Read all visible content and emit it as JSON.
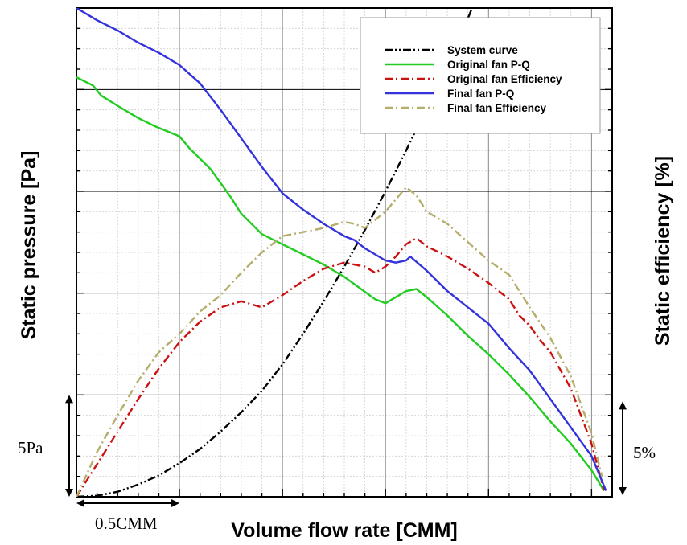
{
  "chart_data": {
    "type": "line",
    "xlabel": "Volume flow rate [CMM]",
    "ylabel_left": "Static pressure [Pa]",
    "ylabel_right": "Static efficiency [%]",
    "xlim": [
      0,
      2.6
    ],
    "ylim_pressure": [
      0,
      24
    ],
    "ylim_efficiency": [
      0,
      24
    ],
    "grid": true,
    "legend_position": "top-right",
    "scale_markers": {
      "x": "0.5CMM",
      "y_left": "5Pa",
      "y_right": "5%"
    },
    "series": [
      {
        "name": "System curve",
        "color": "#000000",
        "dash": "dash-dot-dot",
        "x": [
          0,
          0.1,
          0.2,
          0.3,
          0.4,
          0.5,
          0.6,
          0.7,
          0.8,
          0.9,
          1.0,
          1.1,
          1.2,
          1.3,
          1.4,
          1.5,
          1.6,
          1.7,
          1.8,
          1.9,
          1.96
        ],
        "y": [
          0,
          0.05,
          0.25,
          0.6,
          1.05,
          1.65,
          2.35,
          3.2,
          4.15,
          5.2,
          6.5,
          8.0,
          9.6,
          11.3,
          13.1,
          15.0,
          17.0,
          19.1,
          21.3,
          23.5,
          25.0
        ]
      },
      {
        "name": "Original fan P-Q",
        "color": "#22cc22",
        "dash": "solid",
        "x": [
          0,
          0.08,
          0.12,
          0.2,
          0.3,
          0.38,
          0.5,
          0.55,
          0.65,
          0.75,
          0.8,
          0.9,
          1.0,
          1.1,
          1.2,
          1.3,
          1.45,
          1.5,
          1.6,
          1.65,
          1.7,
          1.8,
          1.9,
          2.0,
          2.1,
          2.2,
          2.3,
          2.4,
          2.5,
          2.56
        ],
        "y": [
          20.6,
          20.2,
          19.7,
          19.2,
          18.6,
          18.2,
          17.7,
          17.1,
          16.1,
          14.7,
          13.9,
          12.9,
          12.4,
          11.9,
          11.4,
          10.8,
          9.7,
          9.5,
          10.1,
          10.2,
          9.8,
          8.9,
          7.9,
          7.0,
          6.0,
          4.9,
          3.7,
          2.6,
          1.3,
          0.3
        ]
      },
      {
        "name": "Original fan Efficiency",
        "color": "#cc1111",
        "dash": "dash-dot",
        "x": [
          0,
          0.1,
          0.2,
          0.3,
          0.4,
          0.5,
          0.6,
          0.7,
          0.8,
          0.9,
          1.0,
          1.1,
          1.2,
          1.3,
          1.4,
          1.45,
          1.5,
          1.55,
          1.6,
          1.65,
          1.7,
          1.8,
          1.9,
          2.0,
          2.1,
          2.15,
          2.2,
          2.25,
          2.3,
          2.4,
          2.5,
          2.56
        ],
        "y": [
          0,
          1.6,
          3.2,
          4.8,
          6.3,
          7.6,
          8.6,
          9.3,
          9.6,
          9.3,
          9.9,
          10.6,
          11.2,
          11.5,
          11.3,
          11.0,
          11.3,
          11.8,
          12.4,
          12.7,
          12.3,
          11.8,
          11.2,
          10.5,
          9.7,
          8.9,
          8.4,
          7.7,
          7.1,
          5.3,
          2.6,
          0.3
        ]
      },
      {
        "name": "Final fan P-Q",
        "color": "#3333dd",
        "dash": "solid",
        "x": [
          0,
          0.1,
          0.2,
          0.3,
          0.4,
          0.5,
          0.6,
          0.7,
          0.8,
          0.9,
          1.0,
          1.1,
          1.2,
          1.3,
          1.35,
          1.4,
          1.5,
          1.55,
          1.6,
          1.62,
          1.7,
          1.8,
          1.9,
          2.0,
          2.1,
          2.2,
          2.3,
          2.4,
          2.5,
          2.57
        ],
        "y": [
          24.0,
          23.4,
          22.9,
          22.3,
          21.8,
          21.2,
          20.3,
          19.0,
          17.6,
          16.2,
          14.9,
          14.1,
          13.4,
          12.8,
          12.6,
          12.2,
          11.6,
          11.5,
          11.6,
          11.8,
          11.1,
          10.1,
          9.3,
          8.5,
          7.3,
          6.2,
          4.8,
          3.4,
          2.0,
          0.3
        ]
      },
      {
        "name": "Final fan Efficiency",
        "color": "#b5ad6a",
        "dash": "dash-dot",
        "x": [
          0,
          0.1,
          0.2,
          0.3,
          0.4,
          0.5,
          0.6,
          0.7,
          0.8,
          0.9,
          1.0,
          1.1,
          1.2,
          1.3,
          1.35,
          1.4,
          1.45,
          1.5,
          1.55,
          1.6,
          1.65,
          1.7,
          1.8,
          1.9,
          2.0,
          2.1,
          2.2,
          2.3,
          2.4,
          2.5,
          2.55
        ],
        "y": [
          0,
          2.2,
          4.0,
          5.7,
          7.1,
          8.0,
          9.1,
          9.9,
          11.0,
          12.0,
          12.8,
          13.0,
          13.2,
          13.5,
          13.4,
          13.2,
          13.6,
          14.0,
          14.6,
          15.2,
          14.8,
          14.0,
          13.4,
          12.5,
          11.6,
          10.9,
          9.3,
          7.8,
          5.9,
          3.1,
          1.0
        ]
      }
    ]
  }
}
